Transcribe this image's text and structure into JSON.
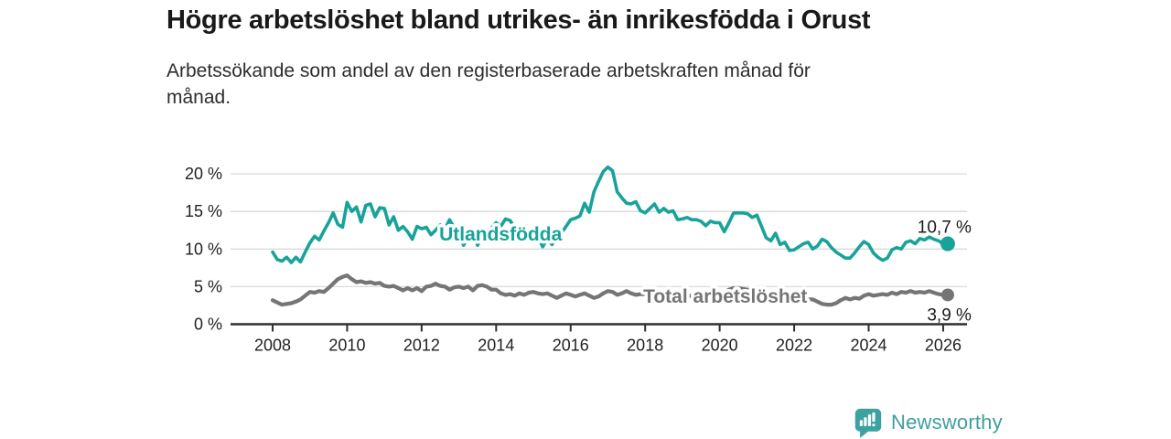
{
  "header": {
    "title": "Högre arbetslöshet bland utrikes- än inrikesfödda i Orust",
    "subtitle": "Arbetssökande som andel av den registerbaserade arbetskraften månad för månad."
  },
  "footer": {
    "brand": "Newsworthy"
  },
  "colors": {
    "teal": "#18a39a",
    "gray": "#757575",
    "grid": "#dadada",
    "axis": "#2f2f2f",
    "tick_text": "#222222",
    "annotation_text": "#1a1a1a",
    "logo": "#3f9e9e",
    "halo": "#ffffff"
  },
  "chart_data": {
    "type": "line",
    "title": "Högre arbetslöshet bland utrikes- än inrikesfödda i Orust",
    "subtitle": "Arbetssökande som andel av den registerbaserade arbetskraften månad för månad.",
    "x_start": 2008,
    "x_step_years": 0.125,
    "x_ticks": [
      "2008",
      "2010",
      "2012",
      "2014",
      "2016",
      "2018",
      "2020",
      "2022",
      "2024",
      "2026"
    ],
    "x_tick_start_year": 2008,
    "x_tick_step_years": 2,
    "y_ticks": [
      {
        "value": 0,
        "label": "0 %"
      },
      {
        "value": 5,
        "label": "5 %"
      },
      {
        "value": 10,
        "label": "10 %"
      },
      {
        "value": 15,
        "label": "15 %"
      },
      {
        "value": 20,
        "label": "20 %"
      }
    ],
    "ylim": [
      0,
      21.8
    ],
    "grid": "horizontal",
    "legend_position": "inline-labels",
    "series": [
      {
        "id": "utlandsfodda",
        "name": "Utlandsfödda",
        "color": "#18a39a",
        "inline_label": {
          "text": "Utlandsfödda",
          "year": 2014.12,
          "value": 12.0
        },
        "end_label": "10,7 %",
        "end_value": 10.7,
        "values": [
          9.6,
          8.6,
          8.4,
          8.9,
          8.2,
          8.9,
          8.3,
          9.6,
          10.8,
          11.7,
          11.2,
          12.4,
          13.5,
          14.8,
          13.3,
          12.9,
          16.2,
          15.0,
          15.6,
          13.6,
          15.8,
          16.0,
          14.3,
          15.5,
          15.4,
          13.2,
          14.3,
          12.5,
          13.0,
          12.3,
          11.3,
          13.0,
          12.7,
          12.9,
          11.9,
          12.5,
          13.2,
          12.6,
          13.9,
          12.8,
          12.0,
          10.5,
          11.8,
          12.2,
          10.5,
          11.6,
          12.3,
          12.8,
          13.5,
          13.0,
          14.0,
          13.8,
          12.8,
          12.2,
          12.6,
          12.2,
          12.4,
          11.6,
          10.3,
          11.3,
          10.6,
          11.4,
          12.1,
          13.0,
          13.9,
          14.1,
          14.4,
          16.1,
          14.9,
          17.6,
          19.0,
          20.3,
          20.9,
          20.4,
          17.6,
          16.8,
          16.1,
          16.0,
          16.3,
          15.1,
          14.8,
          15.4,
          16.0,
          14.9,
          15.4,
          14.9,
          15.1,
          13.9,
          14.0,
          14.2,
          13.9,
          13.9,
          13.7,
          13.1,
          13.7,
          13.5,
          13.5,
          12.3,
          13.5,
          14.8,
          14.8,
          14.8,
          14.7,
          14.2,
          14.5,
          13.0,
          11.5,
          11.1,
          12.1,
          10.6,
          10.9,
          9.8,
          9.9,
          10.3,
          10.7,
          10.9,
          10.0,
          10.4,
          11.3,
          11.0,
          10.2,
          9.6,
          9.2,
          8.8,
          8.8,
          9.5,
          10.3,
          11.0,
          10.6,
          9.5,
          8.9,
          8.5,
          8.8,
          9.9,
          10.2,
          10.0,
          10.9,
          11.1,
          10.7,
          11.4,
          11.2,
          11.6,
          11.3,
          11.1,
          10.7
        ]
      },
      {
        "id": "total",
        "name": "Total arbetslöshet",
        "color": "#757575",
        "inline_label": {
          "text": "Total arbetslöshet",
          "year": 2020.15,
          "value": 3.7
        },
        "end_label": "3,9 %",
        "end_value": 3.9,
        "values": [
          3.2,
          2.9,
          2.6,
          2.7,
          2.8,
          3.0,
          3.3,
          3.8,
          4.3,
          4.2,
          4.4,
          4.3,
          4.8,
          5.4,
          6.0,
          6.3,
          6.5,
          6.0,
          5.6,
          5.7,
          5.5,
          5.6,
          5.4,
          5.5,
          5.1,
          5.0,
          5.1,
          4.8,
          4.5,
          4.8,
          4.5,
          4.8,
          4.4,
          5.0,
          5.1,
          5.4,
          5.1,
          5.0,
          4.6,
          4.9,
          5.0,
          4.8,
          5.0,
          4.5,
          5.1,
          5.2,
          5.0,
          4.6,
          4.6,
          4.1,
          3.9,
          4.0,
          3.8,
          4.1,
          3.9,
          4.2,
          4.3,
          4.1,
          4.0,
          4.1,
          3.8,
          3.5,
          3.8,
          4.1,
          3.9,
          3.7,
          3.9,
          4.1,
          3.8,
          3.5,
          3.7,
          4.1,
          4.4,
          4.3,
          3.9,
          4.1,
          4.4,
          4.1,
          3.9,
          4.0,
          4.0,
          3.9,
          4.1,
          3.9,
          3.8,
          3.9,
          3.8,
          3.9,
          3.8,
          3.7,
          3.8,
          3.7,
          3.6,
          3.7,
          3.8,
          3.9,
          4.0,
          4.2,
          4.6,
          4.8,
          4.8,
          4.7,
          4.6,
          4.5,
          4.4,
          4.3,
          4.2,
          4.0,
          3.9,
          3.8,
          3.7,
          3.6,
          3.5,
          3.4,
          3.4,
          3.3,
          3.3,
          3.0,
          2.7,
          2.6,
          2.6,
          2.8,
          3.2,
          3.5,
          3.3,
          3.5,
          3.4,
          3.8,
          4.0,
          3.8,
          3.9,
          4.0,
          3.9,
          4.2,
          4.0,
          4.3,
          4.2,
          4.4,
          4.2,
          4.3,
          4.2,
          4.4,
          4.2,
          4.0,
          3.9
        ]
      }
    ]
  }
}
